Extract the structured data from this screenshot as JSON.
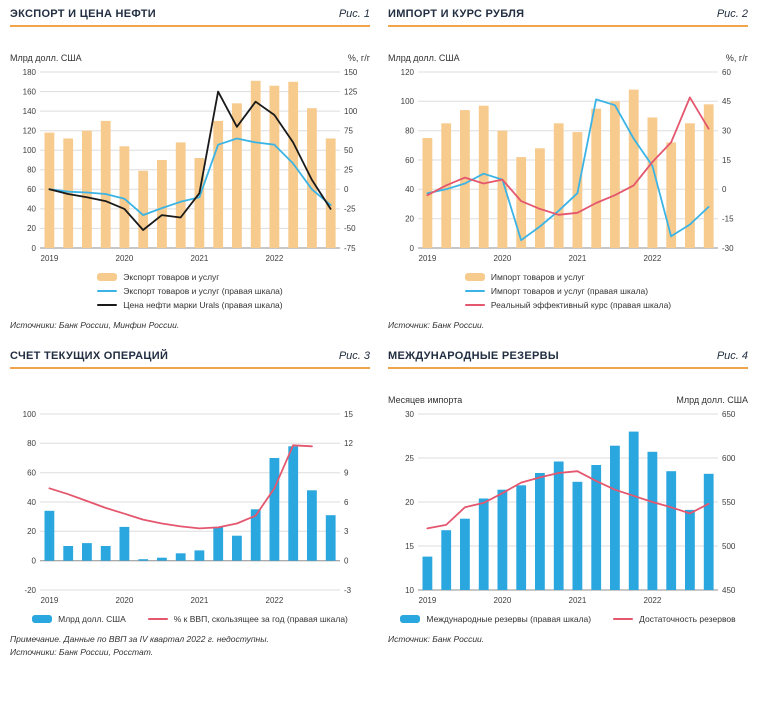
{
  "accent_color": "#F0A54A",
  "panels": [
    {
      "title": "ЭКСПОРТ И ЦЕНА НЕФТИ",
      "fig_label": "Рис. 1",
      "footnotes": [
        "Источники: Банк России, Минфин России."
      ]
    },
    {
      "title": "ИМПОРТ И КУРС РУБЛЯ",
      "fig_label": "Рис. 2",
      "footnotes": [
        "Источник: Банк России."
      ]
    },
    {
      "title": "СЧЕТ ТЕКУЩИХ ОПЕРАЦИЙ",
      "fig_label": "Рис. 3",
      "footnotes": [
        "Примечание. Данные по ВВП за IV квартал 2022 г. недоступны.",
        "Источники: Банк России, Росстат."
      ]
    },
    {
      "title": "МЕЖДУНАРОДНЫЕ РЕЗЕРВЫ",
      "fig_label": "Рис. 4",
      "footnotes": [
        "Источник: Банк России."
      ]
    }
  ],
  "chart_data": [
    {
      "type": "combo",
      "title": "ЭКСПОРТ И ЦЕНА НЕФТИ",
      "categories": [
        "2019Q1",
        "2019Q2",
        "2019Q3",
        "2019Q4",
        "2020Q1",
        "2020Q2",
        "2020Q3",
        "2020Q4",
        "2021Q1",
        "2021Q2",
        "2021Q3",
        "2021Q4",
        "2022Q1",
        "2022Q2",
        "2022Q3",
        "2022Q4"
      ],
      "x_tick_labels": [
        "2019",
        "2020",
        "2021",
        "2022"
      ],
      "year_tick_indices": [
        0,
        4,
        8,
        12
      ],
      "grid": true,
      "legend_position": "bottom",
      "left_axis": {
        "caption": "Млрд долл. США",
        "min": 0,
        "max": 180,
        "step": 20
      },
      "right_axis": {
        "caption": "%, г/г",
        "min": -75,
        "max": 150,
        "step": 25
      },
      "series": [
        {
          "name": "Экспорт товаров и услуг",
          "type": "bar",
          "axis": "left",
          "color": "#F7CA8D",
          "values": [
            118,
            112,
            120,
            130,
            104,
            79,
            90,
            108,
            92,
            130,
            148,
            171,
            166,
            170,
            143,
            112
          ]
        },
        {
          "name": "Экспорт товаров и услуг (правая шкала)",
          "type": "line",
          "axis": "right",
          "color": "#3BB4E5",
          "values": [
            0,
            -3,
            -4,
            -6,
            -12,
            -33,
            -24,
            -16,
            -10,
            57,
            65,
            60,
            57,
            33,
            0,
            -20
          ]
        },
        {
          "name": "Цена нефти марки Urals (правая шкала)",
          "type": "line",
          "axis": "right",
          "color": "#1A1A1A",
          "values": [
            0,
            -6,
            -10,
            -15,
            -25,
            -52,
            -33,
            -36,
            -5,
            125,
            80,
            112,
            95,
            60,
            12,
            -25
          ]
        }
      ]
    },
    {
      "type": "combo",
      "title": "ИМПОРТ И КУРС РУБЛЯ",
      "categories": [
        "2019Q1",
        "2019Q2",
        "2019Q3",
        "2019Q4",
        "2020Q1",
        "2020Q2",
        "2020Q3",
        "2020Q4",
        "2021Q1",
        "2021Q2",
        "2021Q3",
        "2021Q4",
        "2022Q1",
        "2022Q2",
        "2022Q3",
        "2022Q4"
      ],
      "x_tick_labels": [
        "2019",
        "2020",
        "2021",
        "2022"
      ],
      "year_tick_indices": [
        0,
        4,
        8,
        12
      ],
      "grid": true,
      "legend_position": "bottom",
      "left_axis": {
        "caption": "Млрд долл. США",
        "min": 0,
        "max": 120,
        "step": 20
      },
      "right_axis": {
        "caption": "%, г/г",
        "min": -30,
        "max": 60,
        "step": 15
      },
      "series": [
        {
          "name": "Импорт товаров и услуг",
          "type": "bar",
          "axis": "left",
          "color": "#F7CA8D",
          "values": [
            75,
            85,
            94,
            97,
            80,
            62,
            68,
            85,
            79,
            95,
            100,
            108,
            89,
            72,
            85,
            98
          ]
        },
        {
          "name": "Импорт товаров и услуг (правая шкала)",
          "type": "line",
          "axis": "right",
          "color": "#3BB4E5",
          "values": [
            -2,
            0,
            3,
            8,
            5,
            -26,
            -19,
            -11,
            -2,
            46,
            43,
            26,
            12,
            -24,
            -18,
            -9
          ]
        },
        {
          "name": "Реальный эффективный курс (правая шкала)",
          "type": "line",
          "axis": "right",
          "color": "#E4576E",
          "values": [
            -3,
            2,
            6,
            3,
            5,
            -6,
            -10,
            -13,
            -12,
            -7,
            -3,
            2,
            14,
            24,
            47,
            31
          ]
        }
      ]
    },
    {
      "type": "combo",
      "title": "СЧЕТ ТЕКУЩИХ ОПЕРАЦИЙ",
      "categories": [
        "2019Q1",
        "2019Q2",
        "2019Q3",
        "2019Q4",
        "2020Q1",
        "2020Q2",
        "2020Q3",
        "2020Q4",
        "2021Q1",
        "2021Q2",
        "2021Q3",
        "2021Q4",
        "2022Q1",
        "2022Q2",
        "2022Q3",
        "2022Q4"
      ],
      "x_tick_labels": [
        "2019",
        "2020",
        "2021",
        "2022"
      ],
      "year_tick_indices": [
        0,
        4,
        8,
        12
      ],
      "grid": true,
      "legend_position": "bottom",
      "left_axis": {
        "caption": "",
        "min": -20,
        "max": 100,
        "step": 20
      },
      "right_axis": {
        "caption": "",
        "min": -3,
        "max": 15,
        "step": 3
      },
      "series": [
        {
          "name": "Млрд долл. США",
          "type": "bar",
          "axis": "left",
          "color": "#2AA7DE",
          "values": [
            34,
            10,
            12,
            10,
            23,
            1,
            2,
            5,
            7,
            23,
            17,
            35,
            70,
            78,
            48,
            31
          ]
        },
        {
          "name": "% к ВВП, скользящее за год (правая шкала)",
          "type": "line",
          "axis": "right",
          "color": "#E4576E",
          "values": [
            7.4,
            6.8,
            6.1,
            5.4,
            4.8,
            4.2,
            3.8,
            3.5,
            3.3,
            3.4,
            3.8,
            4.6,
            7.4,
            11.8,
            11.7,
            null
          ]
        }
      ]
    },
    {
      "type": "combo",
      "title": "МЕЖДУНАРОДНЫЕ РЕЗЕРВЫ",
      "categories": [
        "2019Q1",
        "2019Q2",
        "2019Q3",
        "2019Q4",
        "2020Q1",
        "2020Q2",
        "2020Q3",
        "2020Q4",
        "2021Q1",
        "2021Q2",
        "2021Q3",
        "2021Q4",
        "2022Q1",
        "2022Q2",
        "2022Q3",
        "2022Q4"
      ],
      "x_tick_labels": [
        "2019",
        "2020",
        "2021",
        "2022"
      ],
      "year_tick_indices": [
        0,
        4,
        8,
        12
      ],
      "grid": true,
      "legend_position": "bottom",
      "left_axis": {
        "caption": "Месяцев импорта",
        "min": 10,
        "max": 30,
        "step": 5
      },
      "right_axis": {
        "caption": "Млрд долл. США",
        "min": 450,
        "max": 650,
        "step": 50
      },
      "series": [
        {
          "name": "Международные резервы (правая шкала)",
          "type": "bar",
          "axis": "right",
          "color": "#2AA7DE",
          "values": [
            488,
            518,
            531,
            554,
            564,
            569,
            583,
            596,
            573,
            592,
            614,
            630,
            607,
            585,
            541,
            582
          ]
        },
        {
          "name": "Достаточность резервов",
          "type": "line",
          "axis": "left",
          "color": "#E4576E",
          "values": [
            17.0,
            17.4,
            19.4,
            19.9,
            21.0,
            22.2,
            22.8,
            23.3,
            23.5,
            22.4,
            21.4,
            20.7,
            20.0,
            19.4,
            18.7,
            19.8
          ]
        }
      ]
    }
  ]
}
